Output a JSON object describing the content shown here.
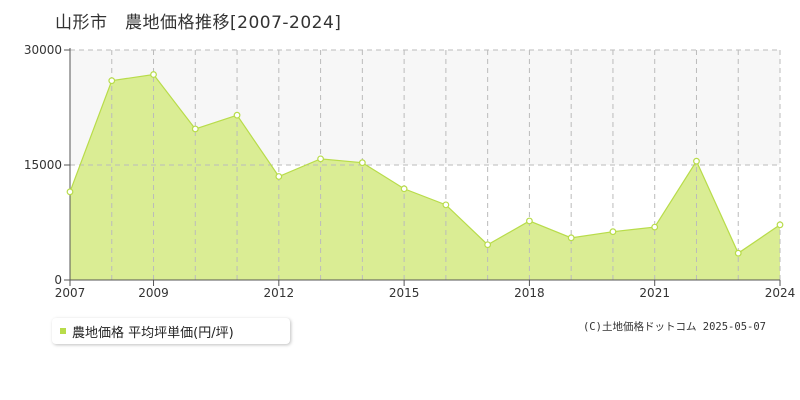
{
  "chart_data": {
    "type": "area",
    "title": "山形市　農地価格推移[2007-2024]",
    "x": [
      2007,
      2008,
      2009,
      2010,
      2011,
      2012,
      2013,
      2014,
      2015,
      2016,
      2017,
      2018,
      2019,
      2020,
      2021,
      2022,
      2023,
      2024
    ],
    "series": [
      {
        "name": "農地価格 平均坪単価(円/坪)",
        "values": [
          11500,
          26000,
          26800,
          19700,
          21500,
          13500,
          15800,
          15300,
          11900,
          9800,
          4600,
          7700,
          5500,
          6300,
          6900,
          15500,
          3500,
          7200
        ]
      }
    ],
    "x_ticks": [
      "2007",
      "2009",
      "2012",
      "2015",
      "2018",
      "2021",
      "2024"
    ],
    "y_ticks": [
      "0",
      "15000",
      "30000"
    ],
    "ylim": [
      0,
      30000
    ],
    "xlim": [
      2007,
      2024
    ],
    "grid": true,
    "legend": "bottom-left",
    "colors": {
      "fill": "#daed94",
      "line": "#b8dc4a",
      "band": "#f7f7f7",
      "grid": "#bbbbbb"
    }
  },
  "legend": {
    "label": "農地価格 平均坪単価(円/坪)"
  },
  "copyright": "(C)土地価格ドットコム 2025-05-07"
}
